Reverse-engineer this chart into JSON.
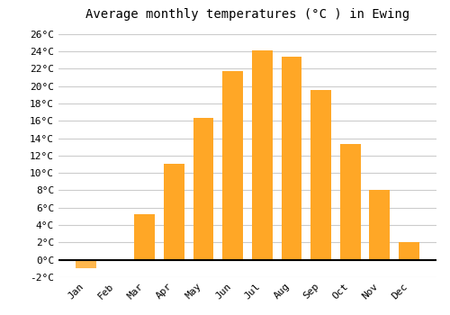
{
  "title": "Average monthly temperatures (°C ) in Ewing",
  "months": [
    "Jan",
    "Feb",
    "Mar",
    "Apr",
    "May",
    "Jun",
    "Jul",
    "Aug",
    "Sep",
    "Oct",
    "Nov",
    "Dec"
  ],
  "values": [
    -1.0,
    0.0,
    5.3,
    11.0,
    16.3,
    21.7,
    24.1,
    23.4,
    19.5,
    13.3,
    8.0,
    2.0
  ],
  "bar_color": "#FFA726",
  "bar_color_negative": "#FFB74D",
  "background_color": "#FFFFFF",
  "grid_color": "#CCCCCC",
  "ylim": [
    -2,
    27
  ],
  "yticks": [
    -2,
    0,
    2,
    4,
    6,
    8,
    10,
    12,
    14,
    16,
    18,
    20,
    22,
    24,
    26
  ],
  "title_fontsize": 10,
  "tick_fontsize": 8,
  "font_family": "monospace"
}
